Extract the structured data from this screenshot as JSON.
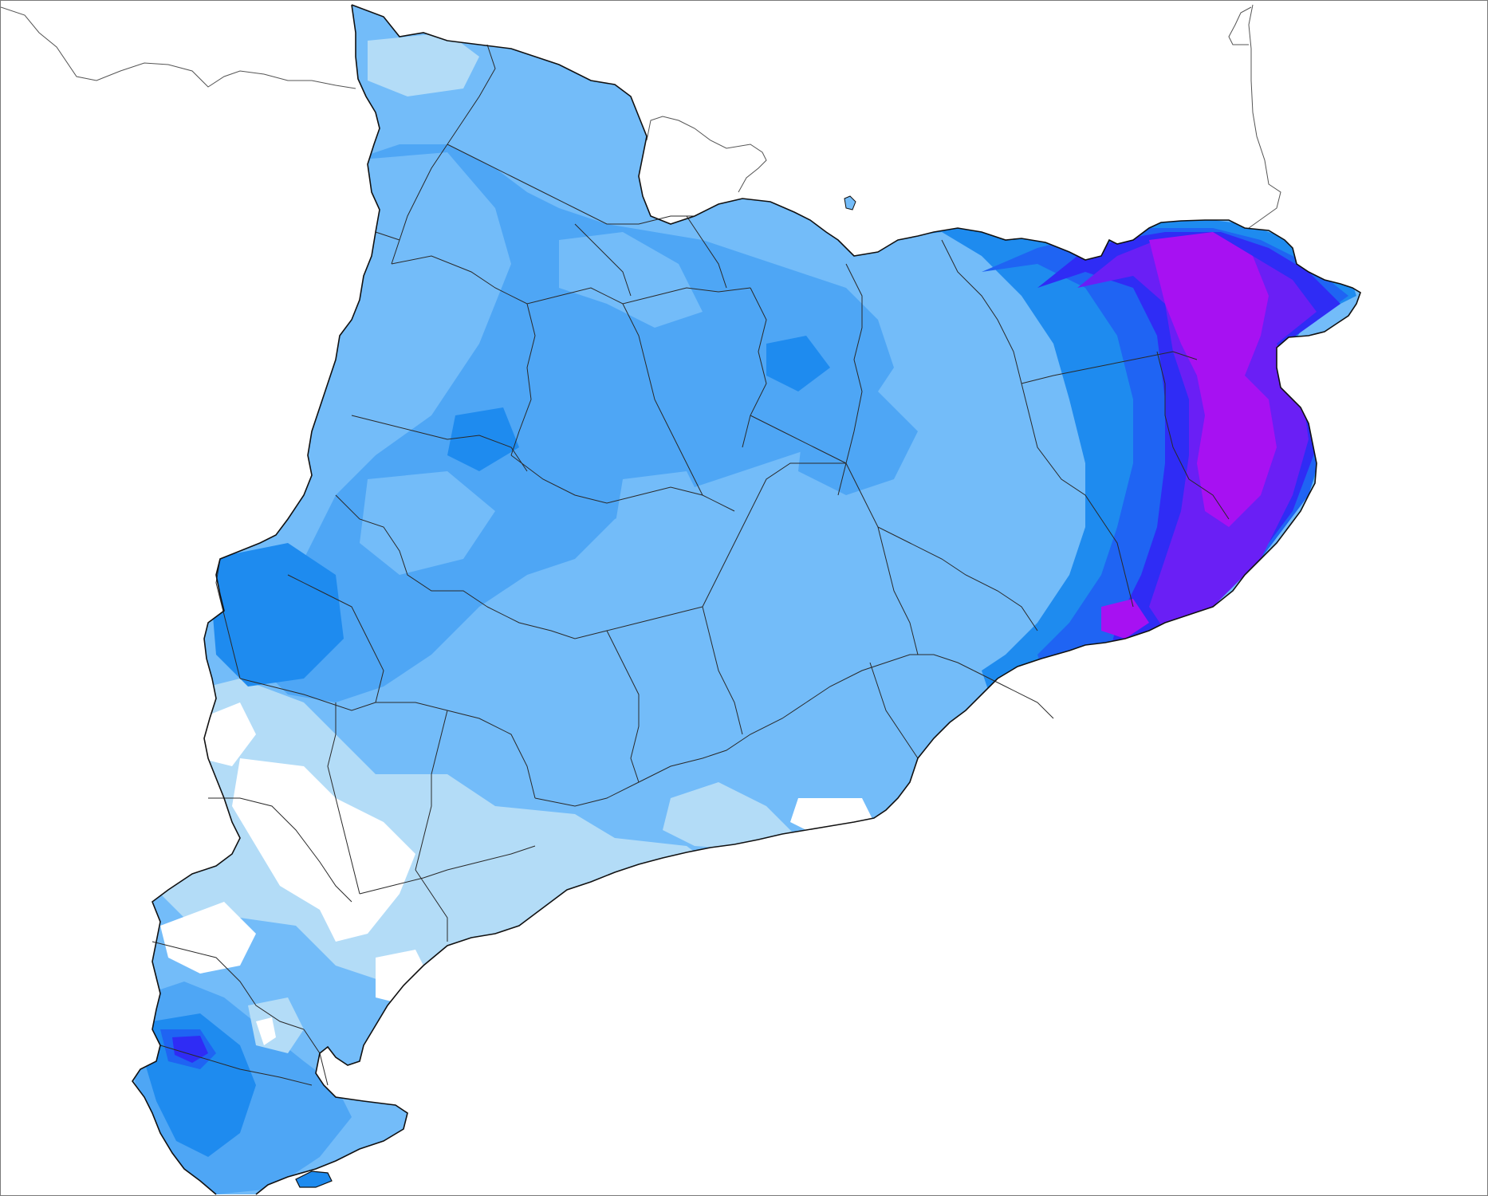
{
  "map": {
    "region": "Catalonia",
    "type": "choropleth-precipitation",
    "colors": {
      "background": "#ffffff",
      "class_1": "#b3dcf7",
      "class_2": "#73bcf9",
      "class_3": "#4ea6f5",
      "class_4": "#1e8bef",
      "class_5": "#1f64f3",
      "class_6": "#2f2cf5",
      "class_7": "#6a1ff5",
      "class_8": "#a711f2",
      "border": "#1a1a1a",
      "outside_border": "#555555"
    },
    "features": [
      "outline-catalonia",
      "comarca-borders",
      "france-border",
      "ebro-delta"
    ]
  }
}
